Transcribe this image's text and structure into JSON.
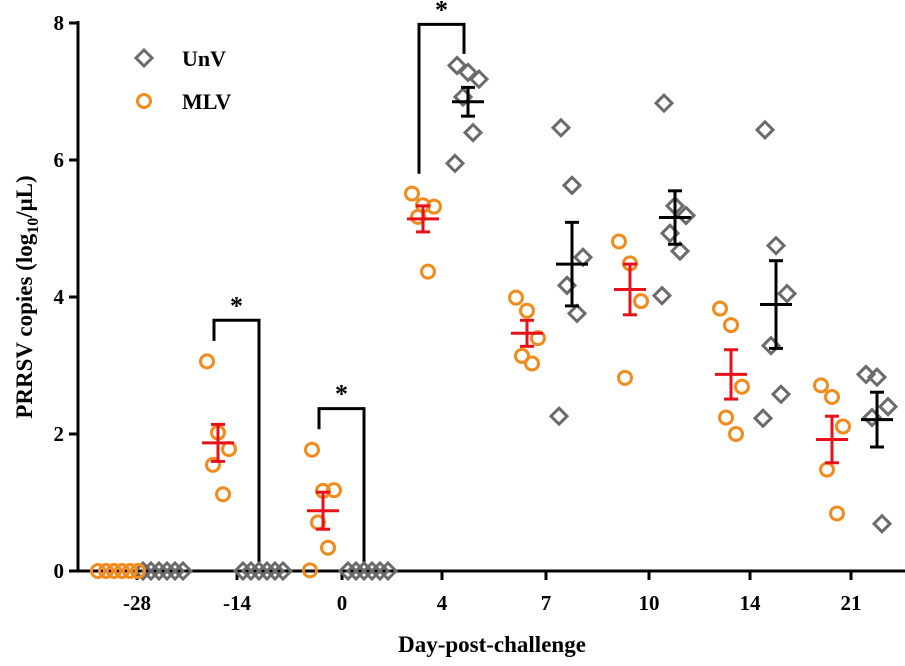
{
  "chart_data": {
    "type": "scatter",
    "title": "",
    "xlabel": "Day-post-challenge",
    "ylabel_main": "PRRSV copies (log",
    "ylabel_sub": "10",
    "ylabel_tail": "/μL)",
    "ylim": [
      0,
      8
    ],
    "yticks": [
      "0",
      "2",
      "4",
      "6",
      "8"
    ],
    "categories": [
      "-28",
      "-14",
      "0",
      "4",
      "7",
      "10",
      "14",
      "21"
    ],
    "legend_position": "top-left",
    "series": [
      {
        "name": "UnV",
        "marker": "diamond",
        "color": "#6b6b6b",
        "mean_color": "#000000",
        "points": [
          [
            0,
            0,
            0,
            0,
            0,
            0
          ],
          [
            0,
            0,
            0,
            0,
            0,
            0
          ],
          [
            0,
            0,
            0,
            0,
            0,
            0
          ],
          [
            7.38,
            7.28,
            7.18,
            6.92,
            6.4,
            5.95
          ],
          [
            6.47,
            5.63,
            4.58,
            4.17,
            3.76,
            2.26
          ],
          [
            6.83,
            5.33,
            5.19,
            4.93,
            4.67,
            4.02
          ],
          [
            6.44,
            4.75,
            4.05,
            3.29,
            2.58,
            2.23
          ],
          [
            2.87,
            2.83,
            2.4,
            2.24,
            0.69
          ]
        ],
        "mean": [
          0,
          0,
          0,
          6.85,
          4.48,
          5.16,
          3.89,
          2.21
        ],
        "sem": [
          0,
          0,
          0,
          0.21,
          0.61,
          0.39,
          0.64,
          0.4
        ]
      },
      {
        "name": "MLV",
        "marker": "circle",
        "color": "#f28a1c",
        "mean_color": "#e8111a",
        "points": [
          [
            0,
            0,
            0,
            0,
            0,
            0
          ],
          [
            3.06,
            2.02,
            1.78,
            1.55,
            1.12
          ],
          [
            1.77,
            1.17,
            1.18,
            0.71,
            0.34,
            0.01
          ],
          [
            5.51,
            5.34,
            5.32,
            5.17,
            4.37
          ],
          [
            3.99,
            3.8,
            3.4,
            3.14,
            3.03
          ],
          [
            4.81,
            4.49,
            3.94,
            2.82
          ],
          [
            3.83,
            3.59,
            2.69,
            2.24,
            2.0
          ],
          [
            2.71,
            2.54,
            2.11,
            1.48,
            0.84
          ]
        ],
        "mean": [
          0,
          1.87,
          0.88,
          5.14,
          3.47,
          4.11,
          2.87,
          1.92
        ],
        "sem": [
          0,
          0.27,
          0.27,
          0.19,
          0.19,
          0.37,
          0.36,
          0.34
        ]
      }
    ],
    "significance": [
      {
        "category_index": 1,
        "label": "*",
        "left_value": 3.06,
        "right_value": 0
      },
      {
        "category_index": 2,
        "label": "*",
        "left_value": 1.77,
        "right_value": 0
      },
      {
        "category_index": 3,
        "label": "*",
        "left_value": 5.51,
        "right_value": 7.38
      }
    ]
  }
}
